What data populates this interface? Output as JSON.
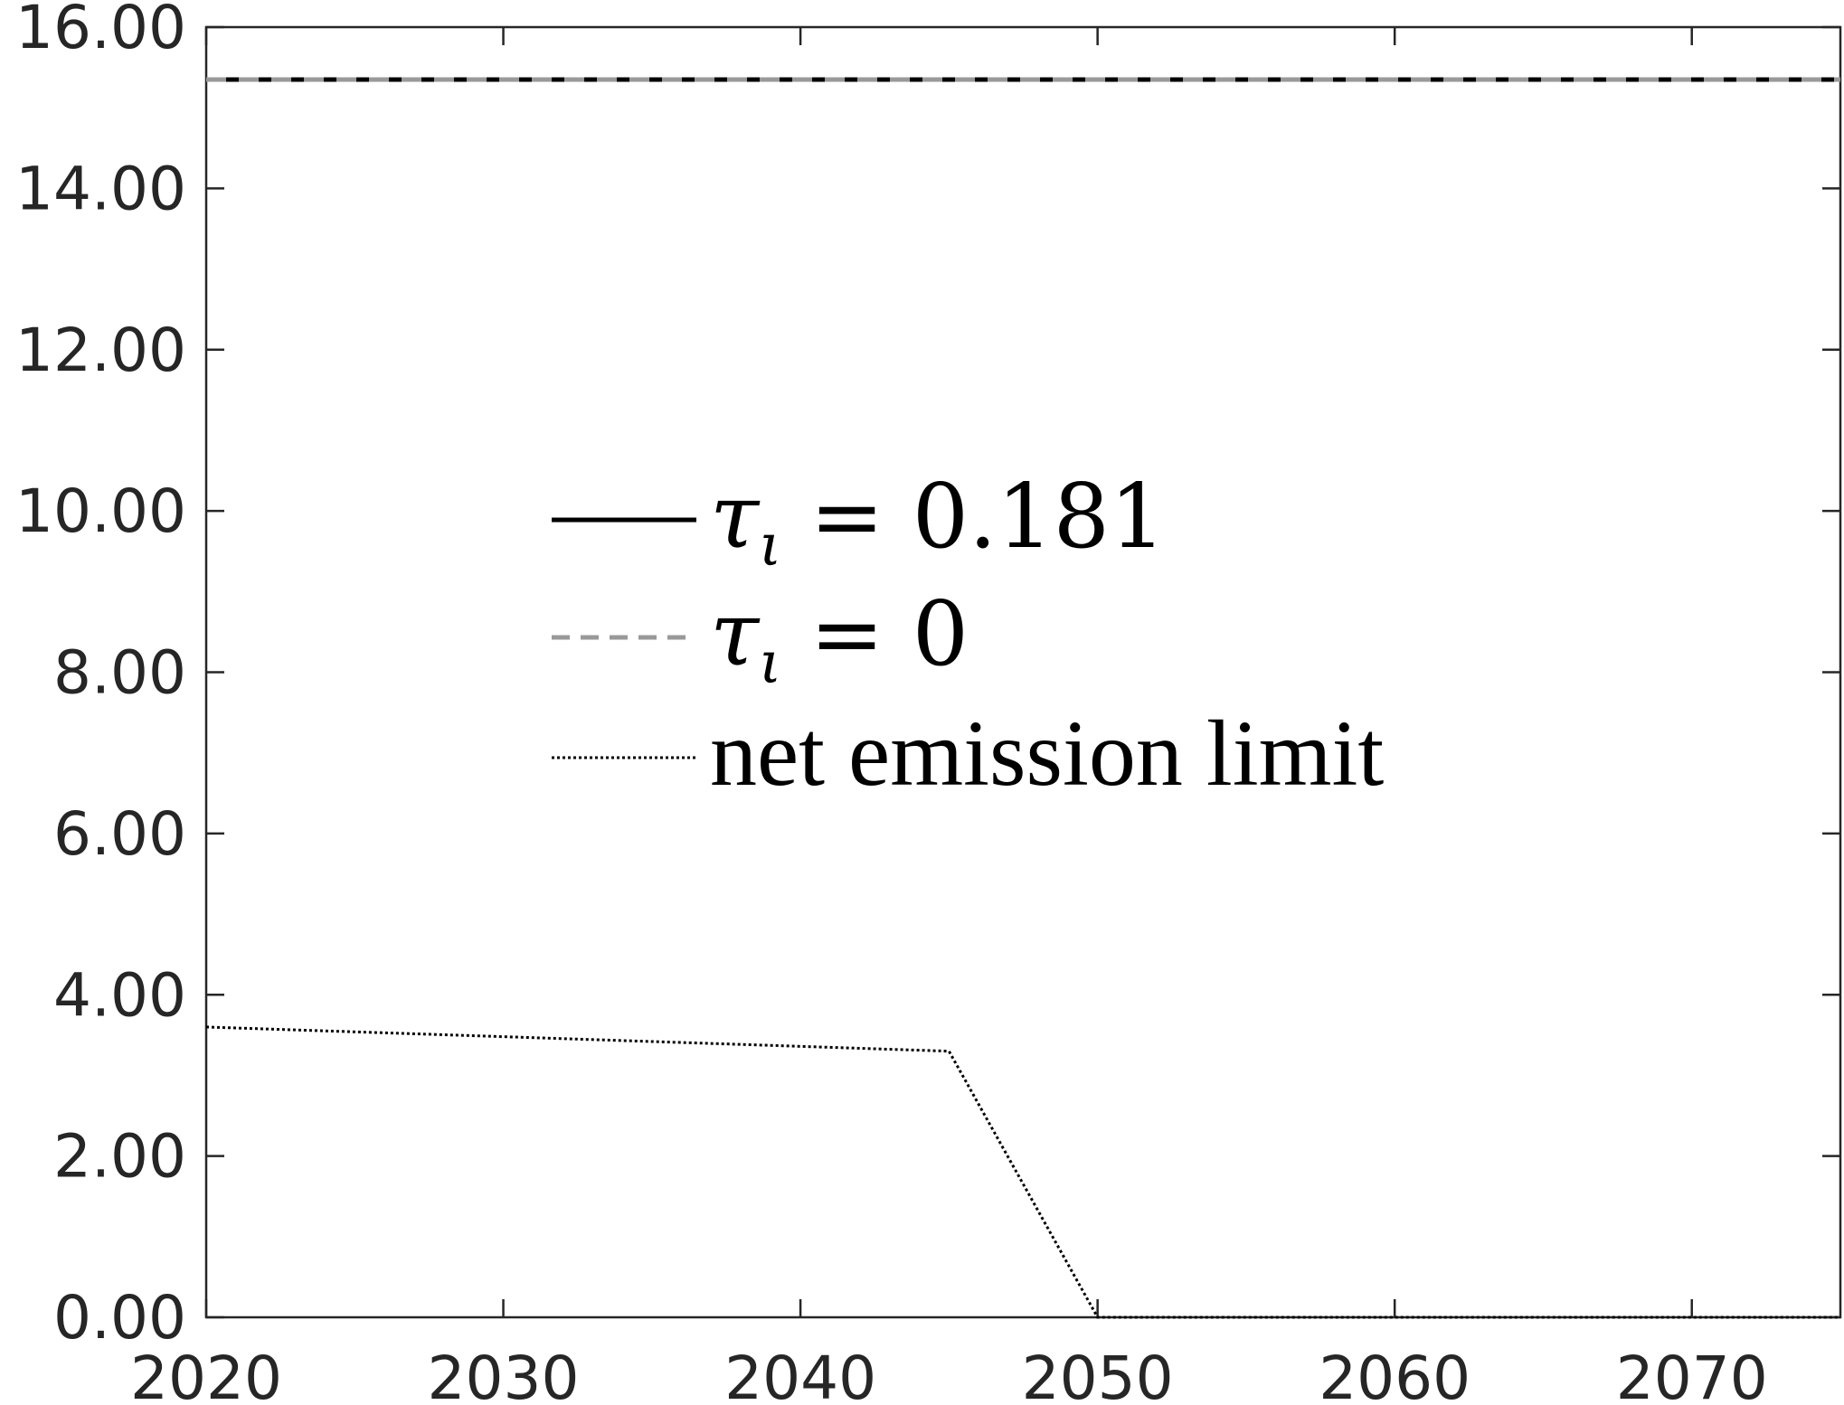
{
  "chart_data": {
    "type": "line",
    "title": "",
    "xlabel": "",
    "ylabel": "",
    "xlim": [
      2020,
      2075
    ],
    "ylim": [
      0,
      16
    ],
    "grid": false,
    "legend_position": "center",
    "x_ticks": [
      2020,
      2030,
      2040,
      2050,
      2060,
      2070
    ],
    "x_tick_labels": [
      "2020",
      "2030",
      "2040",
      "2050",
      "2060",
      "2070"
    ],
    "y_ticks": [
      0,
      2,
      4,
      6,
      8,
      10,
      12,
      14,
      16
    ],
    "y_tick_labels": [
      "0.00",
      "2.00",
      "4.00",
      "6.00",
      "8.00",
      "10.00",
      "12.00",
      "14.00",
      "16.00"
    ],
    "series": [
      {
        "name": "τι = 0.181",
        "style": "solid",
        "color": "#000000",
        "x": [
          2020,
          2075
        ],
        "y": [
          15.35,
          15.35
        ]
      },
      {
        "name": "τι = 0",
        "style": "dashed",
        "color": "#999999",
        "x": [
          2020,
          2075
        ],
        "y": [
          15.35,
          15.35
        ]
      },
      {
        "name": "net emission limit",
        "style": "dotted",
        "color": "#000000",
        "x": [
          2020,
          2045,
          2050,
          2075
        ],
        "y": [
          3.6,
          3.3,
          0.0,
          0.0
        ]
      }
    ],
    "legend": {
      "entries": [
        {
          "symbol": "τ",
          "subscript": "ι",
          "rest": " = 0.181",
          "style": "solid",
          "color": "#000000"
        },
        {
          "symbol": "τ",
          "subscript": "ι",
          "rest": " = 0",
          "style": "dashed",
          "color": "#999999"
        },
        {
          "text": "net emission limit",
          "style": "dotted",
          "color": "#000000"
        }
      ]
    }
  }
}
